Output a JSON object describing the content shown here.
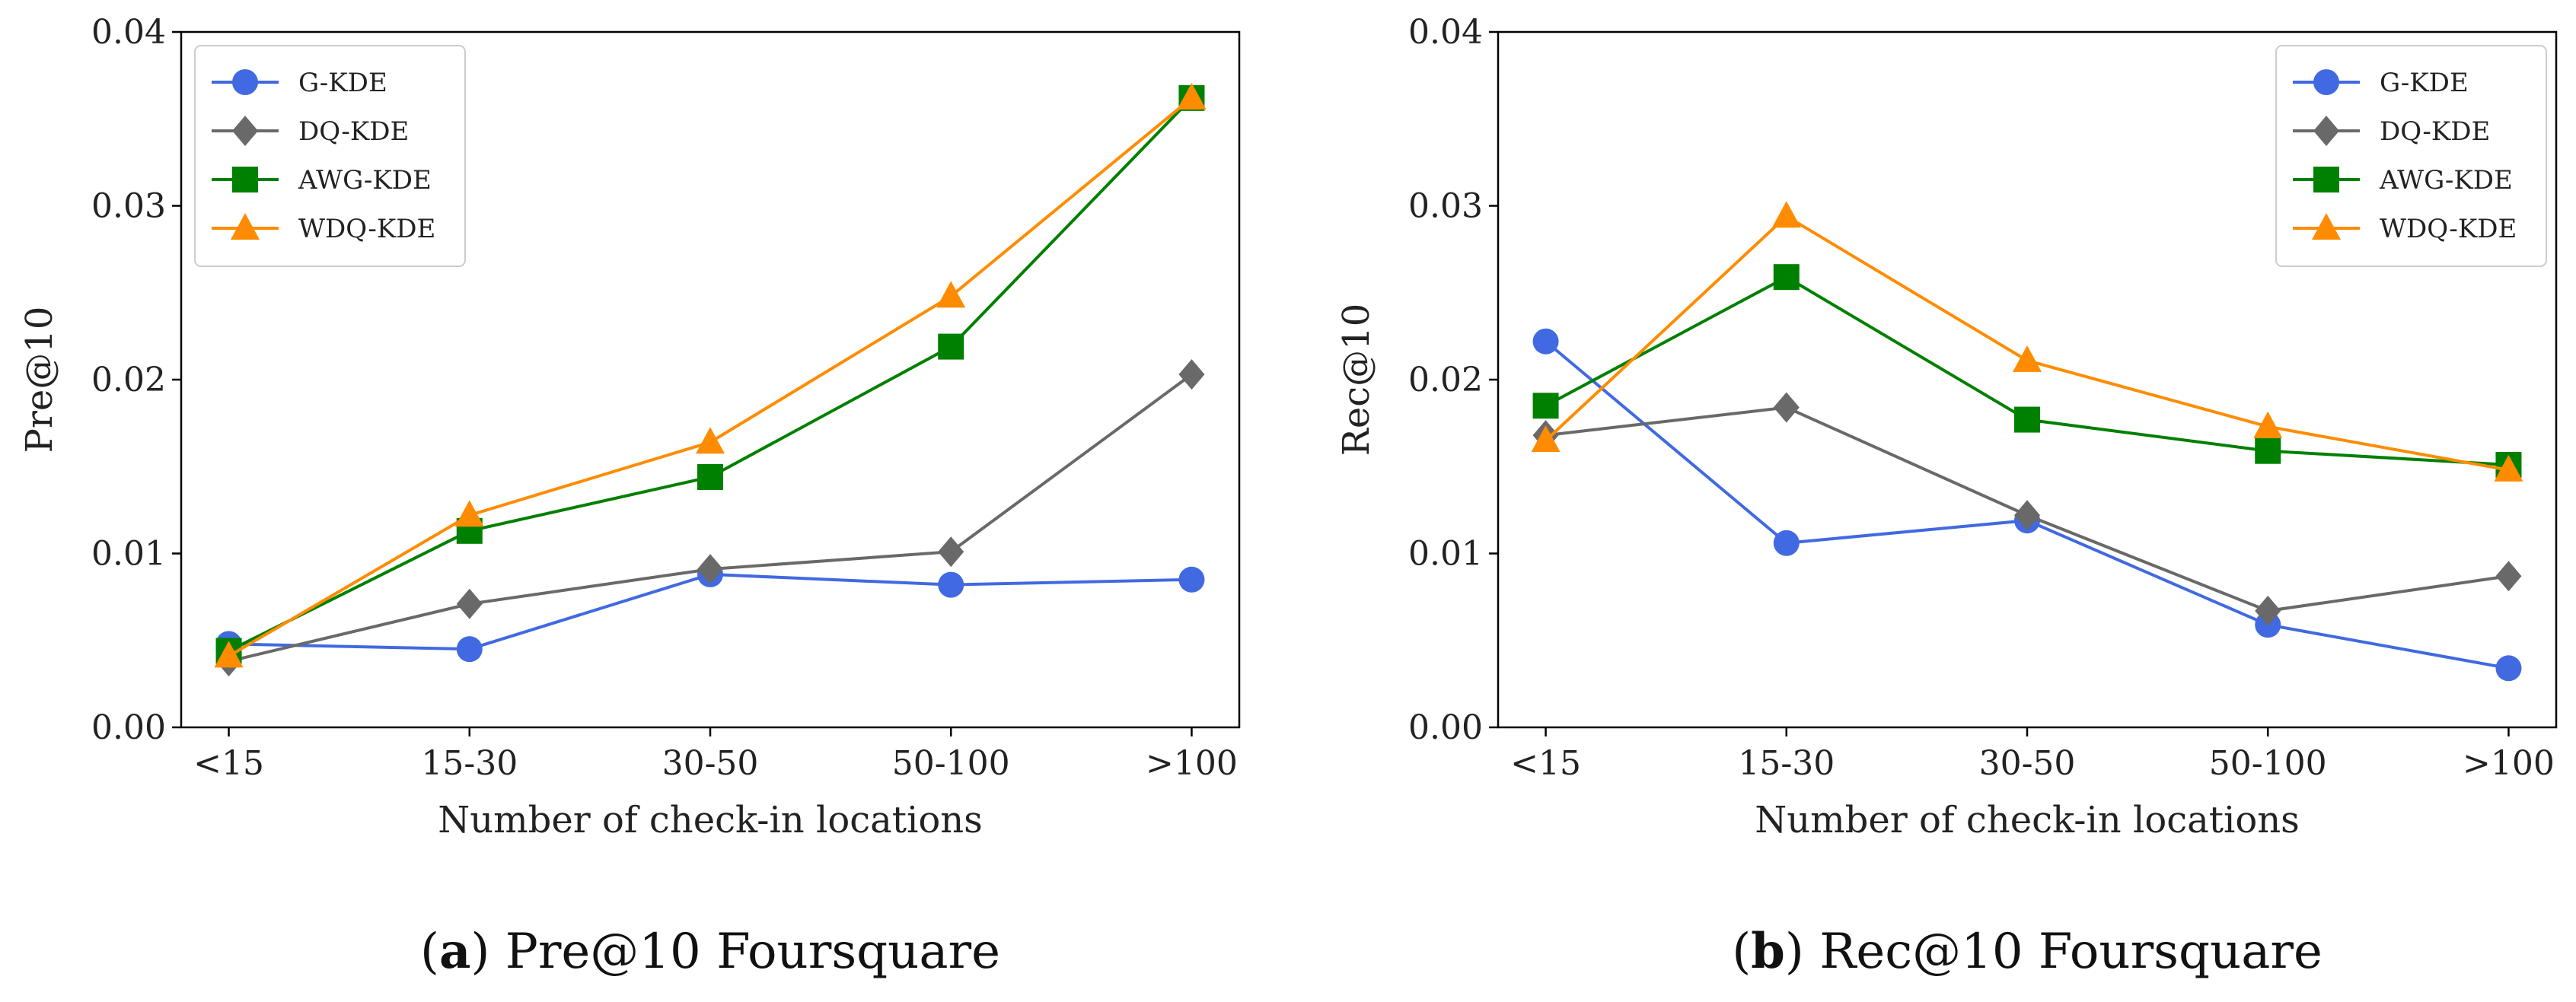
{
  "chart_data": [
    {
      "type": "line",
      "panel_letter": "a",
      "caption": "Pre@10 Foursquare",
      "xlabel": "Number of check-in locations",
      "ylabel": "Pre@10",
      "categories": [
        "<15",
        "15-30",
        "30-50",
        "50-100",
        ">100"
      ],
      "ylim": [
        0,
        0.04
      ],
      "yticks": [
        "0.00",
        "0.01",
        "0.02",
        "0.03",
        "0.04"
      ],
      "legend_position": "top-left",
      "series": [
        {
          "name": "G-KDE",
          "color": "#4169e1",
          "marker": "circle",
          "values": [
            0.0048,
            0.0045,
            0.0088,
            0.0082,
            0.0085
          ]
        },
        {
          "name": "DQ-KDE",
          "color": "#696969",
          "marker": "diamond",
          "values": [
            0.0038,
            0.0071,
            0.0091,
            0.0101,
            0.0203
          ]
        },
        {
          "name": "AWG-KDE",
          "color": "#008000",
          "marker": "square",
          "values": [
            0.0044,
            0.0113,
            0.0144,
            0.0219,
            0.0362
          ]
        },
        {
          "name": "WDQ-KDE",
          "color": "#ff8c00",
          "marker": "triangle",
          "values": [
            0.0041,
            0.0122,
            0.0164,
            0.0248,
            0.0362
          ]
        }
      ]
    },
    {
      "type": "line",
      "panel_letter": "b",
      "caption": "Rec@10 Foursquare",
      "xlabel": "Number of check-in locations",
      "ylabel": "Rec@10",
      "categories": [
        "<15",
        "15-30",
        "30-50",
        "50-100",
        ">100"
      ],
      "ylim": [
        0,
        0.04
      ],
      "yticks": [
        "0.00",
        "0.01",
        "0.02",
        "0.03",
        "0.04"
      ],
      "legend_position": "top-right",
      "series": [
        {
          "name": "G-KDE",
          "color": "#4169e1",
          "marker": "circle",
          "values": [
            0.0222,
            0.0106,
            0.0119,
            0.0059,
            0.0034
          ]
        },
        {
          "name": "DQ-KDE",
          "color": "#696969",
          "marker": "diamond",
          "values": [
            0.0168,
            0.0184,
            0.0122,
            0.0067,
            0.0087
          ]
        },
        {
          "name": "AWG-KDE",
          "color": "#008000",
          "marker": "square",
          "values": [
            0.0185,
            0.0259,
            0.0177,
            0.0159,
            0.0151
          ]
        },
        {
          "name": "WDQ-KDE",
          "color": "#ff8c00",
          "marker": "triangle",
          "values": [
            0.0165,
            0.0294,
            0.0211,
            0.0173,
            0.0148
          ]
        }
      ]
    }
  ]
}
